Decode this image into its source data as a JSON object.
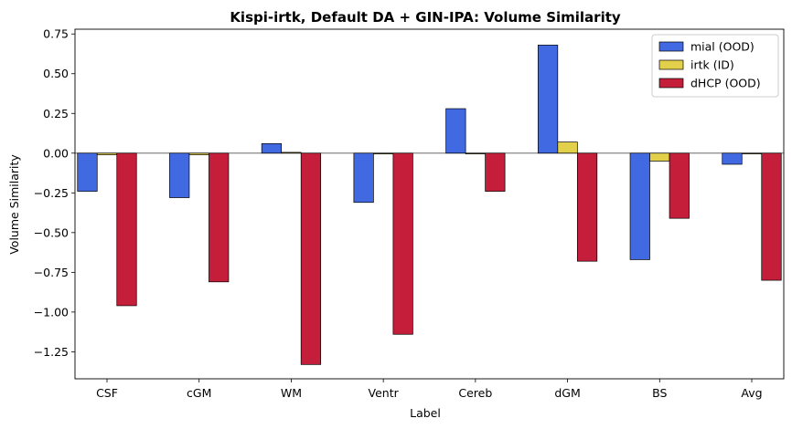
{
  "chart_data": {
    "type": "bar",
    "title": "Kispi-irtk, Default DA + GIN-IPA: Volume Similarity",
    "xlabel": "Label",
    "ylabel": "Volume Similarity",
    "categories": [
      "CSF",
      "cGM",
      "WM",
      "Ventr",
      "Cereb",
      "dGM",
      "BS",
      "Avg"
    ],
    "series": [
      {
        "name": "mial (OOD)",
        "color": "#4169e1",
        "values": [
          -0.24,
          -0.28,
          0.06,
          -0.31,
          0.28,
          0.68,
          -0.67,
          -0.07
        ]
      },
      {
        "name": "irtk (ID)",
        "color": "#e3d04a",
        "values": [
          -0.01,
          -0.01,
          0.005,
          -0.005,
          0.0,
          0.07,
          -0.05,
          0.0
        ]
      },
      {
        "name": "dHCP (OOD)",
        "color": "#c41e3a",
        "values": [
          -0.96,
          -0.81,
          -1.33,
          -1.14,
          -0.24,
          -0.68,
          -0.41,
          -0.8
        ]
      }
    ],
    "ylim": [
      -1.42,
      0.78
    ],
    "yticks": [
      0.75,
      0.5,
      0.25,
      0.0,
      -0.25,
      -0.5,
      -0.75,
      -1.0,
      -1.25
    ],
    "ytick_labels": [
      "0.75",
      "0.50",
      "0.25",
      "0.00",
      "−0.25",
      "−0.50",
      "−0.75",
      "−1.00",
      "−1.25"
    ],
    "zero_line": true,
    "grid": false,
    "legend_position": "top-right"
  }
}
